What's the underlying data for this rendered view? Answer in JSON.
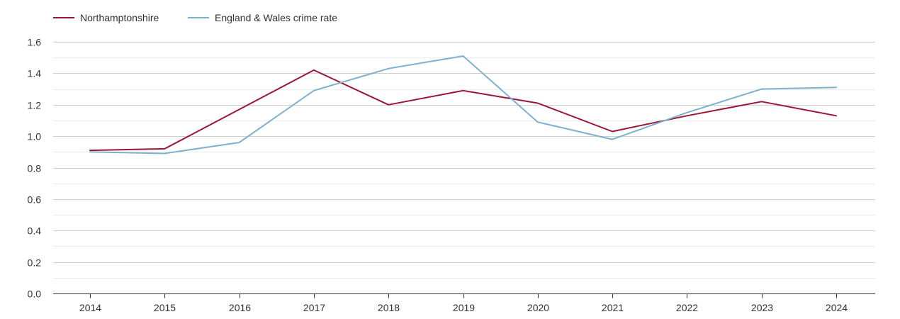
{
  "chart_data": {
    "type": "line",
    "title": "",
    "xlabel": "",
    "ylabel": "",
    "x": [
      "2014",
      "2015",
      "2016",
      "2017",
      "2018",
      "2019",
      "2020",
      "2021",
      "2022",
      "2023",
      "2024"
    ],
    "ylim": [
      0,
      1.6
    ],
    "yticks": [
      "0.0",
      "0.2",
      "0.4",
      "0.6",
      "0.8",
      "1.0",
      "1.2",
      "1.4",
      "1.6"
    ],
    "grid": true,
    "legend_position": "top-left",
    "series": [
      {
        "name": "Northamptonshire",
        "color": "#9c1538",
        "values": [
          0.91,
          0.92,
          1.17,
          1.42,
          1.2,
          1.29,
          1.21,
          1.03,
          1.13,
          1.22,
          1.13
        ]
      },
      {
        "name": "England & Wales crime rate",
        "color": "#7fb0cf",
        "values": [
          0.9,
          0.89,
          0.96,
          1.29,
          1.43,
          1.51,
          1.09,
          0.98,
          1.15,
          1.3,
          1.31
        ]
      }
    ]
  }
}
